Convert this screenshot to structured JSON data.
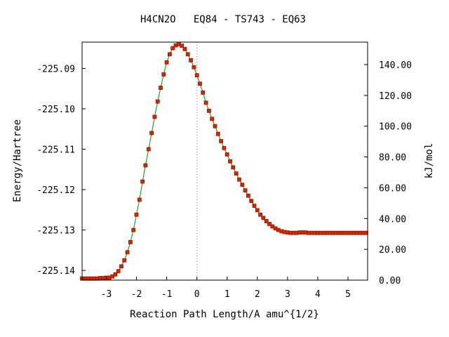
{
  "chart_data": {
    "type": "line",
    "title": "H4CN2O   EQ84 - TS743 - EQ63",
    "xlabel": "Reaction Path Length/A amu^{1/2}",
    "ylabel": "Energy/Hartree",
    "y2label": "kJ/mol",
    "xlim": [
      -3.8,
      5.65
    ],
    "ylim": [
      -225.1424,
      -225.0835
    ],
    "y2lim": [
      0.0,
      154.6
    ],
    "x_ticks": [
      "-3",
      "-2",
      "-1",
      "0",
      "1",
      "2",
      "3",
      "4",
      "5"
    ],
    "y_ticks": [
      "-225.09",
      "-225.10",
      "-225.11",
      "-225.12",
      "-225.13",
      "-225.14"
    ],
    "y2_ticks": [
      "0.00",
      "20.00",
      "40.00",
      "60.00",
      "80.00",
      "100.00",
      "120.00",
      "140.00"
    ],
    "grid": false,
    "zero_line_x": 0,
    "colors": {
      "line": "#009900",
      "marker_fill": "#dd2200",
      "marker_edge": "#882200"
    },
    "series": [
      {
        "x": [
          -3.8,
          -3.7,
          -3.6,
          -3.5,
          -3.4,
          -3.3,
          -3.2,
          -3.1,
          -3.0,
          -2.9,
          -2.8,
          -2.7,
          -2.6,
          -2.5,
          -2.4,
          -2.3,
          -2.2,
          -2.1,
          -2.0,
          -1.9,
          -1.8,
          -1.7,
          -1.6,
          -1.5,
          -1.4,
          -1.3,
          -1.2,
          -1.1,
          -1.0,
          -0.9,
          -0.8,
          -0.7,
          -0.6,
          -0.5,
          -0.4,
          -0.3,
          -0.2,
          -0.1,
          0.0,
          0.1,
          0.2,
          0.3,
          0.4,
          0.5,
          0.6,
          0.7,
          0.8,
          0.9,
          1.0,
          1.1,
          1.2,
          1.3,
          1.4,
          1.5,
          1.6,
          1.7,
          1.8,
          1.9,
          2.0,
          2.1,
          2.2,
          2.3,
          2.4,
          2.5,
          2.6,
          2.7,
          2.8,
          2.9,
          3.0,
          3.1,
          3.2,
          3.3,
          3.4,
          3.5,
          3.6,
          3.7,
          3.8,
          3.9,
          4.0,
          4.1,
          4.2,
          4.3,
          4.4,
          4.5,
          4.6,
          4.7,
          4.8,
          4.9,
          5.0,
          5.1,
          5.2,
          5.3,
          5.4,
          5.5,
          5.6
        ],
        "y": [
          -225.142,
          -225.142,
          -225.142,
          -225.142,
          -225.142,
          -225.142,
          -225.1419,
          -225.1419,
          -225.1418,
          -225.1418,
          -225.1415,
          -225.141,
          -225.1402,
          -225.139,
          -225.1375,
          -225.1355,
          -225.133,
          -225.13,
          -225.1262,
          -225.1225,
          -225.118,
          -225.114,
          -225.11,
          -225.106,
          -225.102,
          -225.0982,
          -225.0948,
          -225.0915,
          -225.0885,
          -225.0865,
          -225.085,
          -225.0843,
          -225.084,
          -225.0844,
          -225.0852,
          -225.0865,
          -225.088,
          -225.0897,
          -225.0917,
          -225.0938,
          -225.096,
          -225.0985,
          -225.1005,
          -225.1025,
          -225.1043,
          -225.1062,
          -225.108,
          -225.1097,
          -225.1113,
          -225.113,
          -225.1145,
          -225.116,
          -225.1175,
          -225.1188,
          -225.1202,
          -225.1215,
          -225.1228,
          -225.124,
          -225.1251,
          -225.1262,
          -225.127,
          -225.1278,
          -225.1285,
          -225.1291,
          -225.1296,
          -225.13,
          -225.1303,
          -225.1305,
          -225.1306,
          -225.1307,
          -225.1307,
          -225.1307,
          -225.1306,
          -225.1306,
          -225.1306,
          -225.1307,
          -225.1307,
          -225.1307,
          -225.1307,
          -225.1307,
          -225.1307,
          -225.1307,
          -225.1307,
          -225.1307,
          -225.1307,
          -225.1307,
          -225.1307,
          -225.1307,
          -225.1307,
          -225.1307,
          -225.1307,
          -225.1307,
          -225.1307,
          -225.1307,
          -225.1307
        ]
      }
    ]
  }
}
